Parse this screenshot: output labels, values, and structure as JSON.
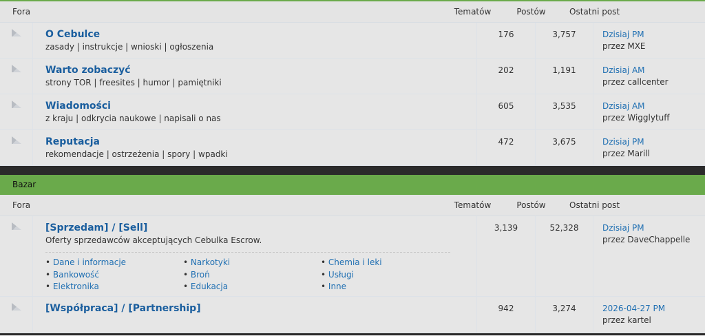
{
  "columns": {
    "forum": "Fora",
    "topics": "Tematów",
    "posts": "Postów",
    "last": "Ostatni post"
  },
  "section1": {
    "forums": [
      {
        "title": "O Cebulce",
        "desc": "zasady | instrukcje | wnioski | ogłoszenia",
        "topics": "176",
        "posts": "3,757",
        "last_date": "Dzisiaj PM",
        "last_by": "przez MXE"
      },
      {
        "title": "Warto zobaczyć",
        "desc": "strony TOR | freesites | humor | pamiętniki",
        "topics": "202",
        "posts": "1,191",
        "last_date": "Dzisiaj AM",
        "last_by": "przez callcenter"
      },
      {
        "title": "Wiadomości",
        "desc": "z kraju | odkrycia naukowe | napisali o nas",
        "topics": "605",
        "posts": "3,535",
        "last_date": "Dzisiaj AM",
        "last_by": "przez Wigglytuff"
      },
      {
        "title": "Reputacja",
        "desc": "rekomendacje | ostrzeżenia | spory | wpadki",
        "topics": "472",
        "posts": "3,675",
        "last_date": "Dzisiaj PM",
        "last_by": "przez Marill"
      }
    ]
  },
  "section2": {
    "category": "Bazar",
    "forums": [
      {
        "title": "[Sprzedam] / [Sell]",
        "desc": "Oferty sprzedawców akceptujących Cebulka Escrow.",
        "topics": "3,139",
        "posts": "52,328",
        "last_date": "Dzisiaj PM",
        "last_by": "przez DaveChappelle",
        "subforums": [
          "Dane i informacje",
          "Narkotyki",
          "Chemia i leki",
          "Bankowość",
          "Broń",
          "Usługi",
          "Elektronika",
          "Edukacja",
          "Inne"
        ]
      },
      {
        "title": "[Współpraca] / [Partnership]",
        "topics": "942",
        "posts": "3,274",
        "last_date": "2026-04-27 PM",
        "last_by": "przez kartel"
      }
    ]
  },
  "colors": {
    "accent": "#6aaa4b",
    "link": "#1a5e9e",
    "dark": "#2b2b2b"
  }
}
